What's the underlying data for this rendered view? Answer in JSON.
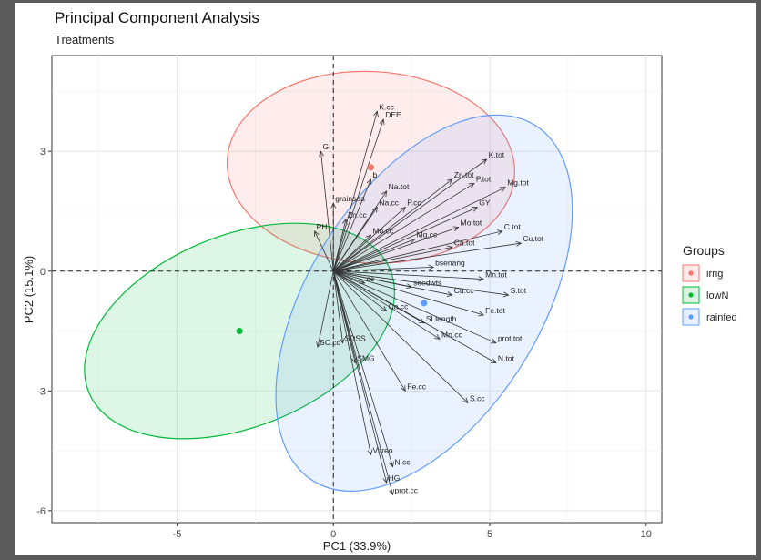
{
  "chart_data": {
    "type": "scatter",
    "subtype": "pca-biplot",
    "title": "Principal Component Analysis",
    "subtitle": "Treatments",
    "xlabel": "PC1 (33.9%)",
    "ylabel": "PC2 (15.1%)",
    "xlim": [
      -9,
      10.5
    ],
    "ylim": [
      -6.3,
      5.4
    ],
    "xticks": [
      -5,
      0,
      5,
      10
    ],
    "yticks": [
      -6,
      -3,
      0,
      3
    ],
    "grid": true,
    "legend": {
      "title": "Groups",
      "position": "right",
      "entries": [
        "irrig",
        "lowN",
        "rainfed"
      ]
    },
    "colors": {
      "irrig": "#F8766D",
      "lowN": "#00BA38",
      "rainfed": "#619CFF"
    },
    "group_means": [
      {
        "group": "irrig",
        "x": 1.2,
        "y": 2.6
      },
      {
        "group": "lowN",
        "x": -3.0,
        "y": -1.5
      },
      {
        "group": "rainfed",
        "x": 2.9,
        "y": -0.8
      }
    ],
    "ellipses": [
      {
        "group": "irrig",
        "cx": 1.2,
        "cy": 2.6,
        "rx": 4.6,
        "ry": 2.4,
        "angle": 3
      },
      {
        "group": "lowN",
        "cx": -3.0,
        "cy": -1.5,
        "rx": 5.2,
        "ry": 2.4,
        "angle": -22
      },
      {
        "group": "rainfed",
        "cx": 2.9,
        "cy": -0.8,
        "rx": 6.7,
        "ry": 2.9,
        "angle": -58
      }
    ],
    "loadings": [
      {
        "name": "K.cc",
        "x": 1.4,
        "y": 4.0
      },
      {
        "name": "DEE",
        "x": 1.6,
        "y": 3.8
      },
      {
        "name": "GI",
        "x": -0.4,
        "y": 3.0
      },
      {
        "name": "b",
        "x": 1.2,
        "y": 2.3
      },
      {
        "name": "K.tot",
        "x": 4.9,
        "y": 2.8
      },
      {
        "name": "Zn.tot",
        "x": 3.8,
        "y": 2.3
      },
      {
        "name": "P.tot",
        "x": 4.5,
        "y": 2.2
      },
      {
        "name": "Mg.tot",
        "x": 5.5,
        "y": 2.1
      },
      {
        "name": "Na.tot",
        "x": 1.7,
        "y": 2.0
      },
      {
        "name": "grainsea",
        "x": 0.0,
        "y": 1.7
      },
      {
        "name": "GY",
        "x": 4.6,
        "y": 1.6
      },
      {
        "name": "Na.cc",
        "x": 1.4,
        "y": 1.6
      },
      {
        "name": "P.cc",
        "x": 2.3,
        "y": 1.6
      },
      {
        "name": "Zn.cc",
        "x": 0.4,
        "y": 1.3
      },
      {
        "name": "Mo.tot",
        "x": 4.0,
        "y": 1.1
      },
      {
        "name": "C.tot",
        "x": 5.4,
        "y": 1.0
      },
      {
        "name": "PH",
        "x": -0.6,
        "y": 1.0
      },
      {
        "name": "Mo.cc",
        "x": 1.2,
        "y": 0.9
      },
      {
        "name": "Cu.tot",
        "x": 6.0,
        "y": 0.7
      },
      {
        "name": "Mg.cc",
        "x": 2.6,
        "y": 0.8
      },
      {
        "name": "Ca.tot",
        "x": 3.8,
        "y": 0.6
      },
      {
        "name": "bsenang",
        "x": 3.2,
        "y": 0.1
      },
      {
        "name": "Mn.tot",
        "x": 4.8,
        "y": -0.2
      },
      {
        "name": "cc",
        "x": 1.0,
        "y": -0.3
      },
      {
        "name": "seedwts",
        "x": 2.5,
        "y": -0.4
      },
      {
        "name": "Cu.cc",
        "x": 3.8,
        "y": -0.6
      },
      {
        "name": "S.tot",
        "x": 5.6,
        "y": -0.6
      },
      {
        "name": "Ca.cc",
        "x": 1.7,
        "y": -1.0
      },
      {
        "name": "Fe.tot",
        "x": 4.8,
        "y": -1.1
      },
      {
        "name": "SLlength",
        "x": 2.9,
        "y": -1.3
      },
      {
        "name": "Mn.cc",
        "x": 3.4,
        "y": -1.7
      },
      {
        "name": "prot.tot",
        "x": 5.2,
        "y": -1.8
      },
      {
        "name": "N.tot",
        "x": 5.2,
        "y": -2.3
      },
      {
        "name": "SC.cc",
        "x": -0.5,
        "y": -1.9
      },
      {
        "name": "SDSS",
        "x": 0.3,
        "y": -1.8
      },
      {
        "name": "SMG",
        "x": 0.7,
        "y": -2.3
      },
      {
        "name": "Fe.cc",
        "x": 2.3,
        "y": -3.0
      },
      {
        "name": "S.cc",
        "x": 4.3,
        "y": -3.3
      },
      {
        "name": "Vitreo",
        "x": 1.2,
        "y": -4.6
      },
      {
        "name": "N.cc",
        "x": 1.9,
        "y": -4.9
      },
      {
        "name": "HG",
        "x": 1.7,
        "y": -5.3
      },
      {
        "name": "prot.cc",
        "x": 1.9,
        "y": -5.6
      }
    ]
  }
}
